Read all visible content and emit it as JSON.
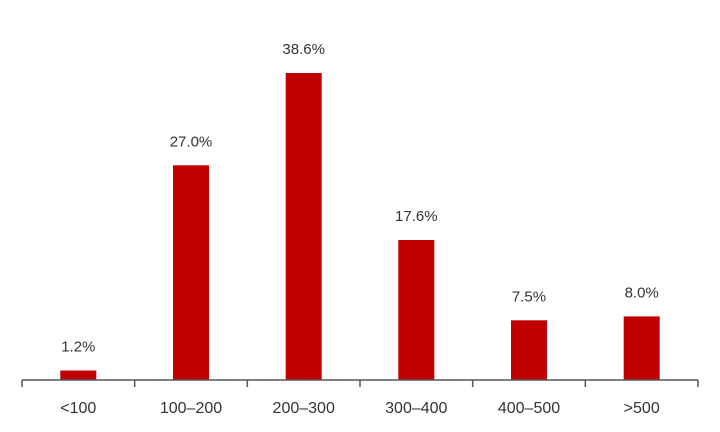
{
  "chart_data": {
    "type": "bar",
    "categories": [
      "<100",
      "100–200",
      "200–300",
      "300–400",
      "400–500",
      ">500"
    ],
    "values": [
      1.2,
      27.0,
      38.6,
      17.6,
      7.5,
      8.0
    ],
    "value_labels": [
      "1.2%",
      "27.0%",
      "38.6%",
      "17.6%",
      "7.5%",
      "8.0%"
    ],
    "title": "",
    "xlabel": "",
    "ylabel": "",
    "ylim": [
      0,
      40
    ],
    "grid": false,
    "legend": "none",
    "bar_color": "#c00000",
    "axis_color": "#555555",
    "label_color": "#333333"
  }
}
